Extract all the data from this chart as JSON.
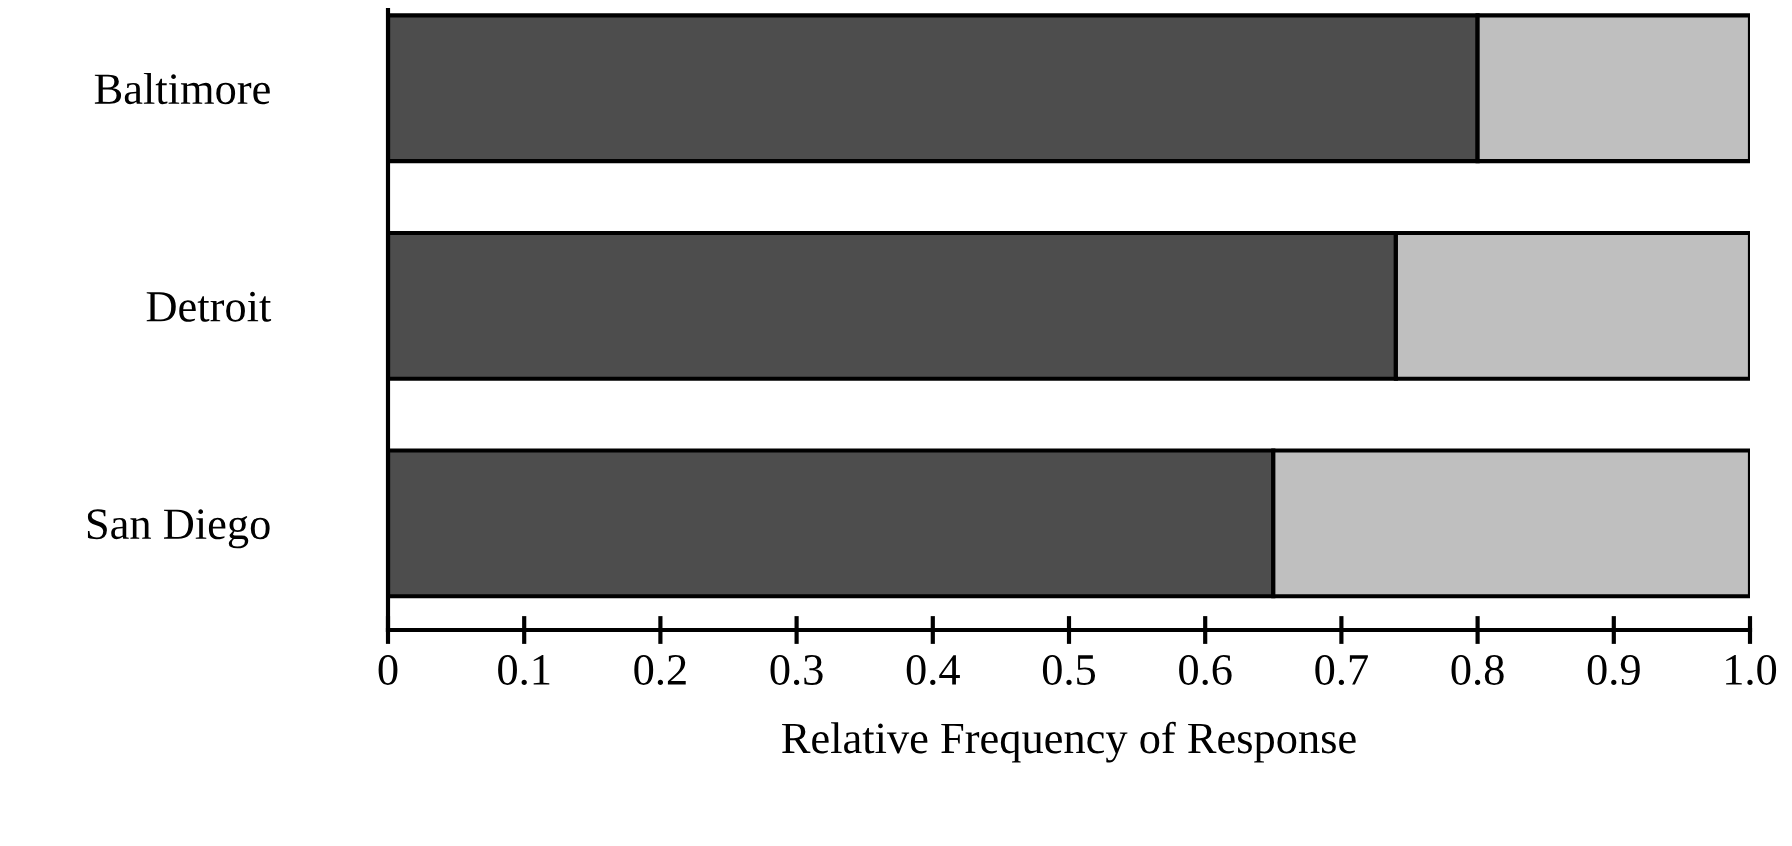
{
  "chart_data": {
    "type": "bar",
    "orientation": "horizontal",
    "stacked": true,
    "xlabel": "Relative Frequency of Response",
    "categories": [
      "Baltimore",
      "Detroit",
      "San Diego"
    ],
    "series": [
      {
        "color": "#4d4d4d",
        "values": [
          0.8,
          0.74,
          0.65
        ]
      },
      {
        "color": "#bfbfbf",
        "values": [
          0.2,
          0.26,
          0.35
        ]
      }
    ],
    "xlim": [
      0,
      1.0
    ],
    "xticks": [
      0,
      0.1,
      0.2,
      0.3,
      0.4,
      0.5,
      0.6,
      0.7,
      0.8,
      0.9,
      {
        "value": 1.0,
        "label": "1.0"
      }
    ],
    "grid": false,
    "legend": false
  }
}
